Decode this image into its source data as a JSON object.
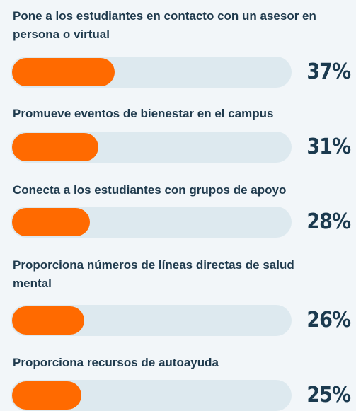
{
  "chart_data": {
    "type": "bar",
    "categories": [
      "Pone a los estudiantes en contacto con un asesor en persona o virtual",
      "Promueve eventos de bienestar en el campus",
      "Conecta a los estudiantes con grupos de apoyo",
      "Proporciona números de líneas directas de salud mental",
      "Proporciona recursos de autoayuda"
    ],
    "values": [
      37,
      31,
      28,
      26,
      25
    ],
    "value_labels": [
      "37%",
      "31%",
      "28%",
      "26%",
      "25%"
    ],
    "xlim": [
      0,
      100
    ],
    "color": "#ff6a00"
  }
}
